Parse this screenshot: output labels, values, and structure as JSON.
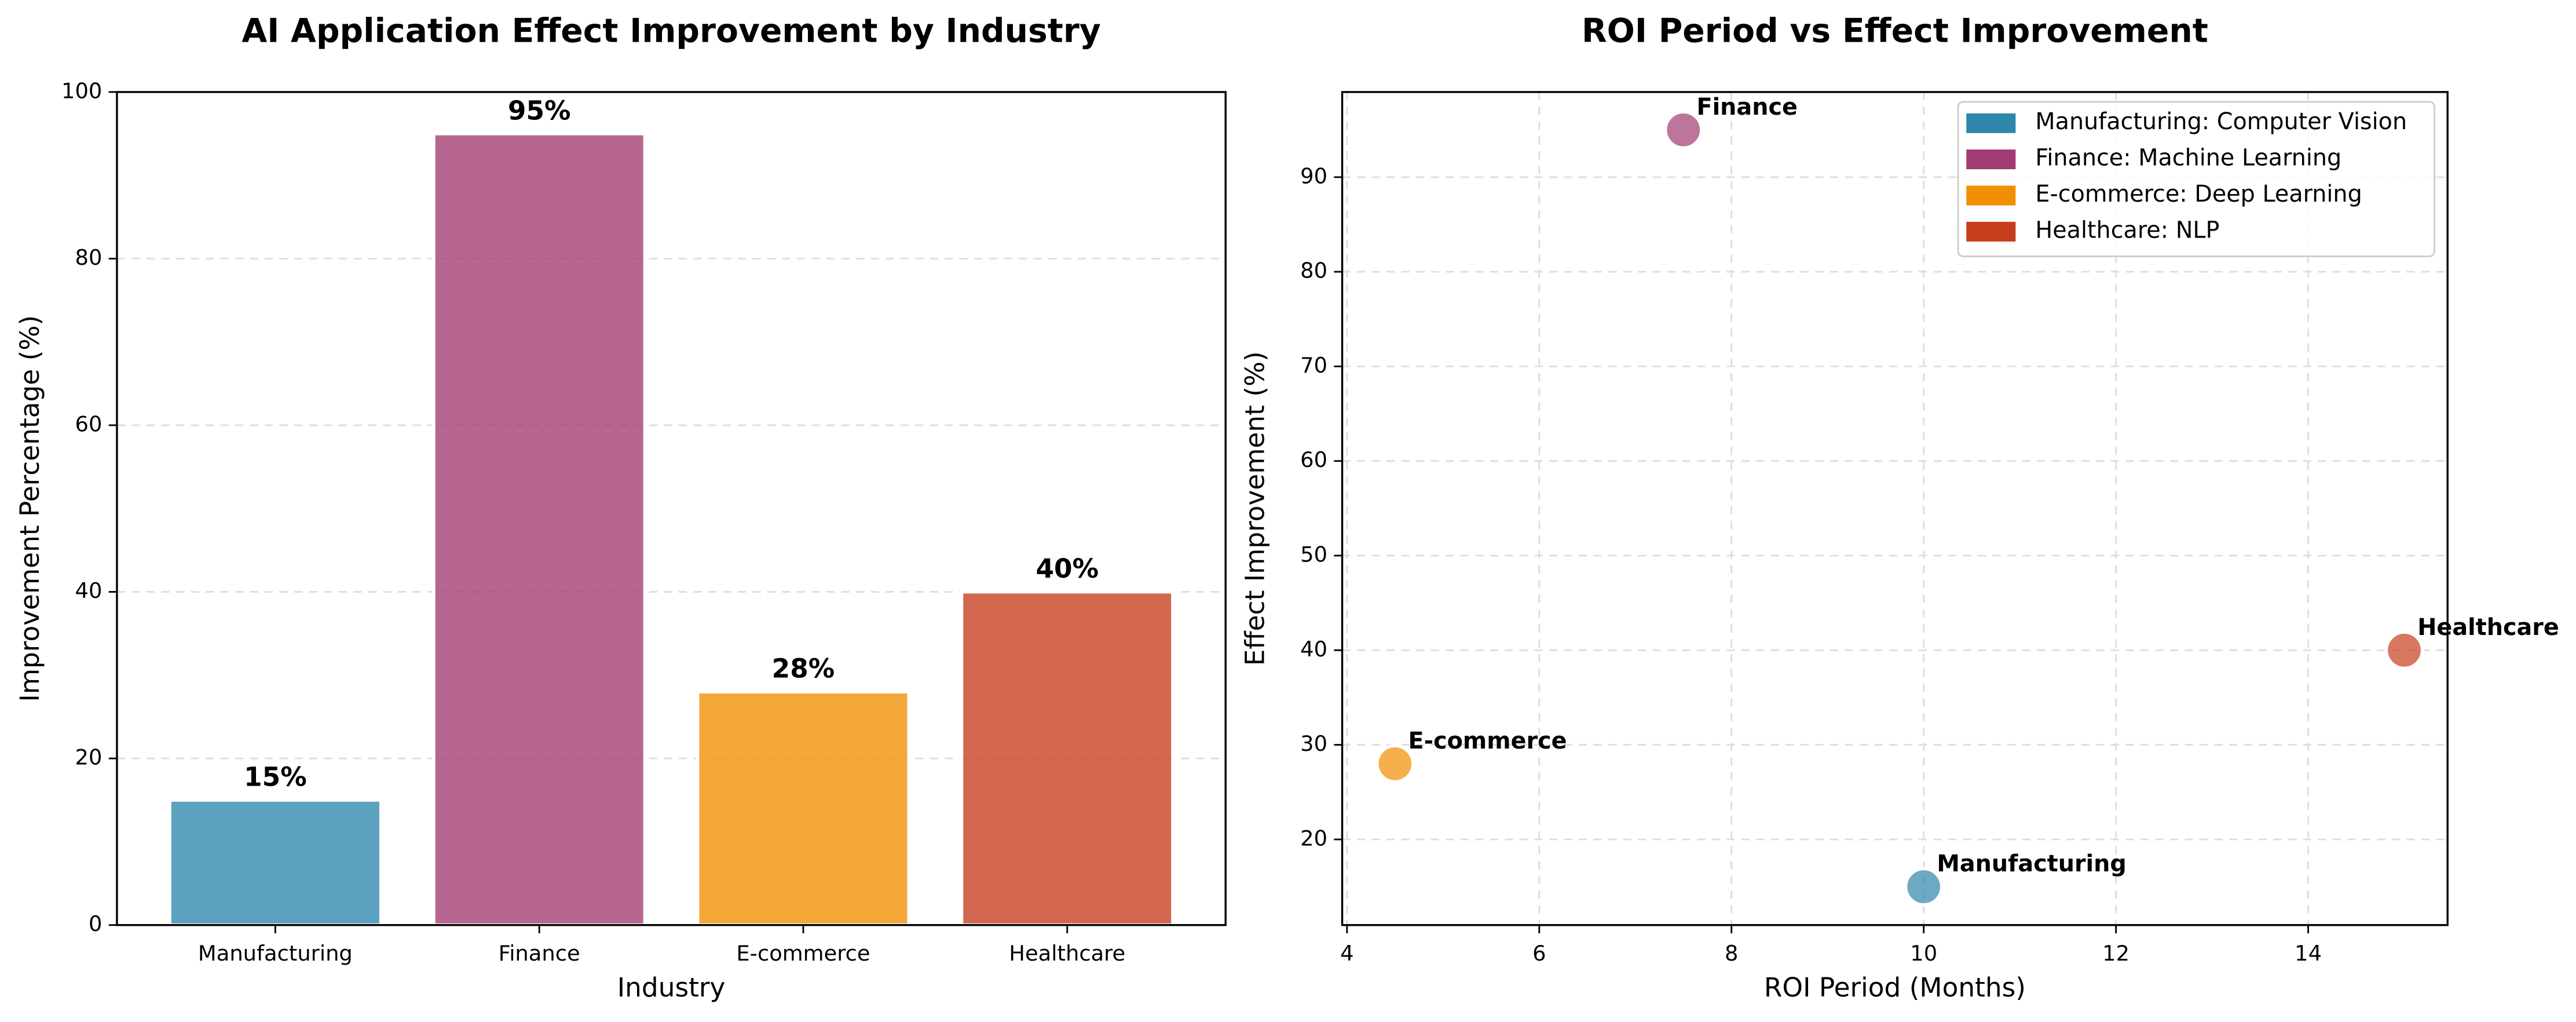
{
  "chart_data": [
    {
      "type": "bar",
      "title": "AI Application Effect Improvement by Industry",
      "x_label": "Industry",
      "y_label": "Improvement Percentage (%)",
      "categories": [
        "Manufacturing",
        "Finance",
        "E-commerce",
        "Healthcare"
      ],
      "values": [
        15,
        95,
        28,
        40
      ],
      "value_labels": [
        "15%",
        "95%",
        "28%",
        "40%"
      ],
      "colors": [
        "#2e86ab",
        "#a23b72",
        "#f18f01",
        "#c73e1d"
      ],
      "ylim": [
        0,
        100
      ],
      "yticks": [
        0,
        20,
        40,
        60,
        80,
        100
      ],
      "grid": true
    },
    {
      "type": "scatter",
      "title": "ROI Period vs Effect Improvement",
      "x_label": "ROI Period (Months)",
      "y_label": "Effect Improvement (%)",
      "series": [
        {
          "name": "Manufacturing: Computer Vision",
          "label": "Manufacturing",
          "color": "#2e86ab",
          "x": [
            10
          ],
          "values": [
            15
          ]
        },
        {
          "name": "Finance: Machine Learning",
          "label": "Finance",
          "color": "#a23b72",
          "x": [
            7.5
          ],
          "values": [
            95
          ]
        },
        {
          "name": "E-commerce: Deep Learning",
          "label": "E-commerce",
          "color": "#f18f01",
          "x": [
            4.5
          ],
          "values": [
            28
          ]
        },
        {
          "name": "Healthcare: NLP",
          "label": "Healthcare",
          "color": "#c73e1d",
          "x": [
            15
          ],
          "values": [
            40
          ]
        }
      ],
      "xlim": [
        3.95,
        15.45
      ],
      "xticks": [
        4,
        6,
        8,
        10,
        12,
        14
      ],
      "ylim": [
        10.95,
        99.0
      ],
      "yticks": [
        20,
        30,
        40,
        50,
        60,
        70,
        80,
        90
      ],
      "grid": true,
      "legend": "upper right"
    }
  ]
}
